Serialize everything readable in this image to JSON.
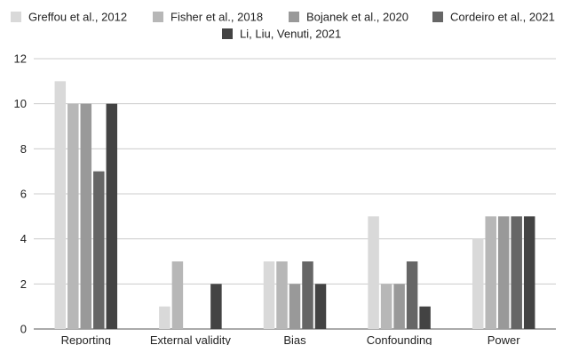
{
  "chart_data": {
    "type": "bar",
    "categories": [
      "Reporting",
      "External validity",
      "Bias",
      "Confounding",
      "Power"
    ],
    "series": [
      {
        "name": "Greffou et al., 2012",
        "values": [
          11,
          1,
          3,
          5,
          4
        ],
        "color": "#d9d9d9"
      },
      {
        "name": "Fisher et al., 2018",
        "values": [
          10,
          3,
          3,
          2,
          5
        ],
        "color": "#b7b7b7"
      },
      {
        "name": "Bojanek et al., 2020",
        "values": [
          10,
          0,
          2,
          2,
          5
        ],
        "color": "#999999"
      },
      {
        "name": "Cordeiro et al., 2021",
        "values": [
          7,
          0,
          3,
          3,
          5
        ],
        "color": "#666666"
      },
      {
        "name": "Li, Liu, Venuti, 2021",
        "values": [
          10,
          2,
          2,
          1,
          5
        ],
        "color": "#434343"
      }
    ],
    "yticks": [
      0,
      2,
      4,
      6,
      8,
      10,
      12
    ],
    "ylim": [
      0,
      12
    ],
    "grid": true,
    "legend_position": "top"
  }
}
